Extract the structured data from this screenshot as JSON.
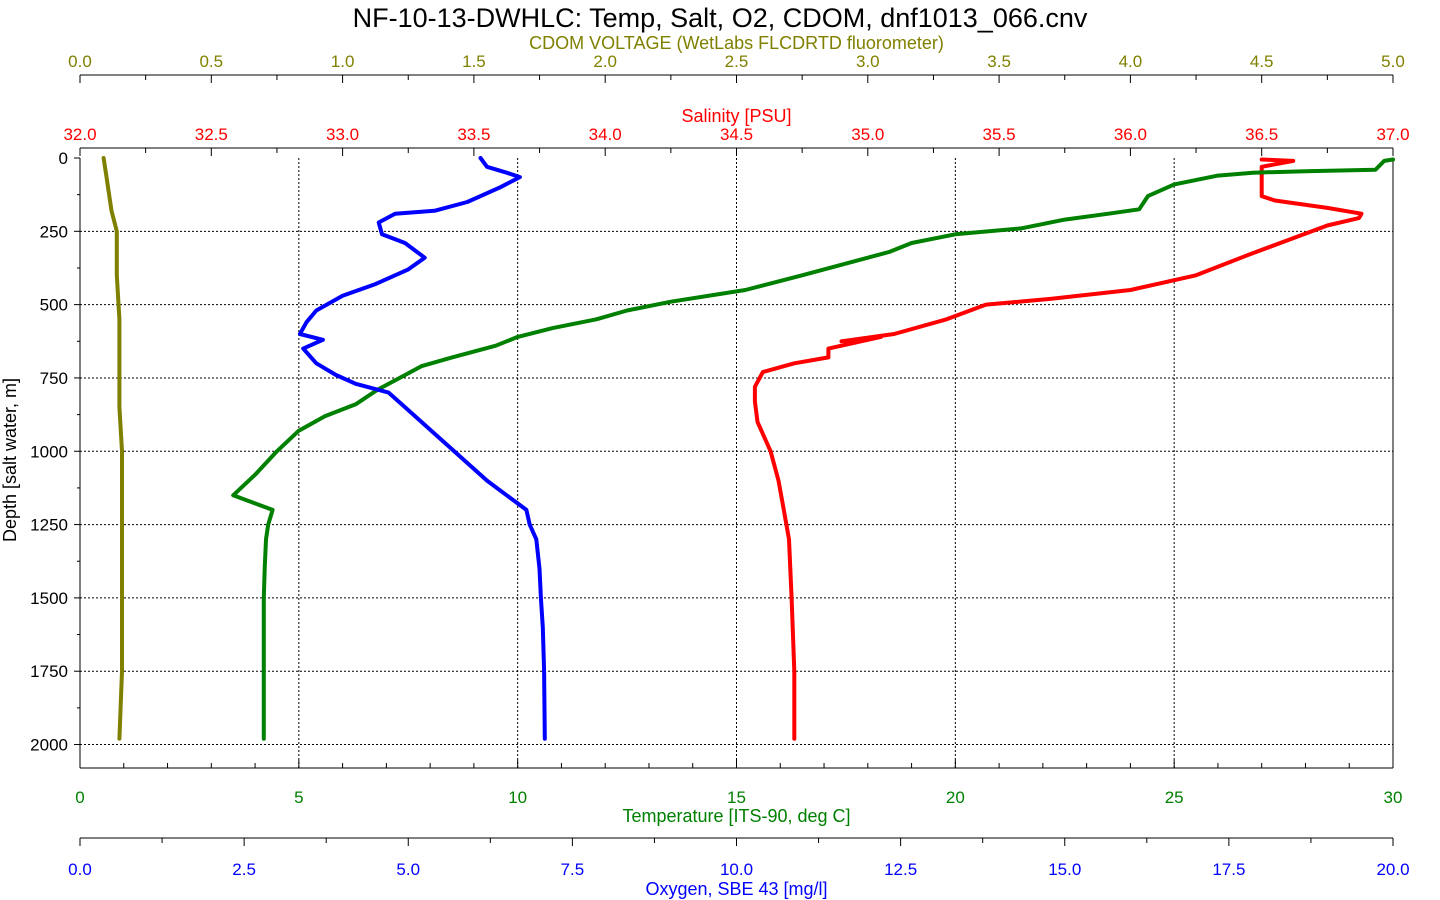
{
  "chart_data": {
    "type": "line",
    "title": "NF-10-13-DWHLC: Temp, Salt, O2, CDOM, dnf1013_066.cnv",
    "ylabel": "Depth [salt water, m]",
    "ylim": [
      0,
      2080
    ],
    "yticks": [
      "0",
      "250",
      "500",
      "750",
      "1000",
      "1250",
      "1500",
      "1750",
      "2000"
    ],
    "grid": true,
    "axes": {
      "cdom": {
        "label": "CDOM VOLTAGE (WetLabs FLCDRTD fluorometer)",
        "color": "#808000",
        "range": [
          0,
          5
        ],
        "ticks": [
          "0.0",
          "0.5",
          "1.0",
          "1.5",
          "2.0",
          "2.5",
          "3.0",
          "3.5",
          "4.0",
          "4.5",
          "5.0"
        ]
      },
      "salinity": {
        "label": "Salinity [PSU]",
        "color": "#ff0000",
        "range": [
          32,
          37
        ],
        "ticks": [
          "32.0",
          "32.5",
          "33.0",
          "33.5",
          "34.0",
          "34.5",
          "35.0",
          "35.5",
          "36.0",
          "36.5",
          "37.0"
        ]
      },
      "temperature": {
        "label": "Temperature [ITS-90, deg C]",
        "color": "#008000",
        "range": [
          0,
          30
        ],
        "ticks": [
          "0",
          "5",
          "10",
          "15",
          "20",
          "25",
          "30"
        ]
      },
      "oxygen": {
        "label": "Oxygen, SBE 43 [mg/l]",
        "color": "#0000ff",
        "range": [
          0,
          20
        ],
        "ticks": [
          "0.0",
          "2.5",
          "5.0",
          "7.5",
          "10.0",
          "12.5",
          "15.0",
          "17.5",
          "20.0"
        ]
      }
    },
    "series": [
      {
        "axis": "cdom",
        "color": "#808000",
        "points": [
          [
            0.09,
            0
          ],
          [
            0.1,
            60
          ],
          [
            0.11,
            120
          ],
          [
            0.12,
            180
          ],
          [
            0.14,
            250
          ],
          [
            0.14,
            400
          ],
          [
            0.15,
            550
          ],
          [
            0.15,
            700
          ],
          [
            0.15,
            850
          ],
          [
            0.16,
            1000
          ],
          [
            0.16,
            1250
          ],
          [
            0.16,
            1500
          ],
          [
            0.16,
            1750
          ],
          [
            0.15,
            1980
          ]
        ]
      },
      {
        "axis": "salinity",
        "color": "#ff0000",
        "points": [
          [
            36.5,
            5
          ],
          [
            36.62,
            10
          ],
          [
            36.5,
            30
          ],
          [
            36.5,
            60
          ],
          [
            36.5,
            100
          ],
          [
            36.5,
            130
          ],
          [
            36.55,
            145
          ],
          [
            36.75,
            170
          ],
          [
            36.88,
            190
          ],
          [
            36.87,
            205
          ],
          [
            36.75,
            230
          ],
          [
            36.6,
            280
          ],
          [
            36.45,
            330
          ],
          [
            36.25,
            400
          ],
          [
            36.0,
            450
          ],
          [
            35.7,
            480
          ],
          [
            35.45,
            500
          ],
          [
            35.3,
            550
          ],
          [
            35.1,
            600
          ],
          [
            34.9,
            625
          ],
          [
            35.05,
            610
          ],
          [
            34.85,
            650
          ],
          [
            34.85,
            680
          ],
          [
            34.72,
            700
          ],
          [
            34.6,
            730
          ],
          [
            34.57,
            780
          ],
          [
            34.57,
            830
          ],
          [
            34.58,
            900
          ],
          [
            34.63,
            1000
          ],
          [
            34.66,
            1100
          ],
          [
            34.68,
            1200
          ],
          [
            34.7,
            1300
          ],
          [
            34.71,
            1500
          ],
          [
            34.72,
            1750
          ],
          [
            34.72,
            1980
          ]
        ]
      },
      {
        "axis": "temperature",
        "color": "#008000",
        "points": [
          [
            30.0,
            5
          ],
          [
            29.8,
            10
          ],
          [
            29.6,
            40
          ],
          [
            28.0,
            45
          ],
          [
            26.8,
            50
          ],
          [
            26.0,
            60
          ],
          [
            25.0,
            90
          ],
          [
            24.4,
            130
          ],
          [
            24.2,
            175
          ],
          [
            23.5,
            190
          ],
          [
            22.5,
            210
          ],
          [
            21.5,
            240
          ],
          [
            20.0,
            260
          ],
          [
            19.0,
            290
          ],
          [
            18.5,
            320
          ],
          [
            17.5,
            360
          ],
          [
            16.5,
            400
          ],
          [
            15.2,
            450
          ],
          [
            13.5,
            490
          ],
          [
            12.5,
            520
          ],
          [
            11.8,
            550
          ],
          [
            10.8,
            580
          ],
          [
            10.0,
            610
          ],
          [
            9.5,
            640
          ],
          [
            8.5,
            680
          ],
          [
            7.8,
            710
          ],
          [
            7.3,
            750
          ],
          [
            6.8,
            790
          ],
          [
            6.3,
            840
          ],
          [
            5.6,
            880
          ],
          [
            5.0,
            930
          ],
          [
            4.5,
            1000
          ],
          [
            4.0,
            1080
          ],
          [
            3.5,
            1150
          ],
          [
            4.4,
            1200
          ],
          [
            4.3,
            1250
          ],
          [
            4.25,
            1300
          ],
          [
            4.22,
            1400
          ],
          [
            4.2,
            1500
          ],
          [
            4.2,
            1700
          ],
          [
            4.2,
            1980
          ]
        ]
      },
      {
        "axis": "oxygen",
        "color": "#0000ff",
        "points": [
          [
            6.1,
            0
          ],
          [
            6.2,
            30
          ],
          [
            6.5,
            50
          ],
          [
            6.7,
            65
          ],
          [
            6.4,
            100
          ],
          [
            5.9,
            150
          ],
          [
            5.4,
            180
          ],
          [
            4.8,
            190
          ],
          [
            4.55,
            220
          ],
          [
            4.6,
            260
          ],
          [
            4.95,
            290
          ],
          [
            5.25,
            340
          ],
          [
            5.0,
            380
          ],
          [
            4.5,
            430
          ],
          [
            4.0,
            470
          ],
          [
            3.6,
            520
          ],
          [
            3.45,
            560
          ],
          [
            3.35,
            600
          ],
          [
            3.7,
            620
          ],
          [
            3.4,
            650
          ],
          [
            3.6,
            700
          ],
          [
            3.9,
            740
          ],
          [
            4.2,
            770
          ],
          [
            4.7,
            800
          ],
          [
            4.9,
            840
          ],
          [
            5.2,
            900
          ],
          [
            5.7,
            1000
          ],
          [
            6.2,
            1100
          ],
          [
            6.5,
            1150
          ],
          [
            6.8,
            1200
          ],
          [
            6.85,
            1250
          ],
          [
            6.95,
            1300
          ],
          [
            7.0,
            1400
          ],
          [
            7.02,
            1500
          ],
          [
            7.05,
            1600
          ],
          [
            7.07,
            1750
          ],
          [
            7.08,
            1980
          ]
        ]
      }
    ]
  }
}
